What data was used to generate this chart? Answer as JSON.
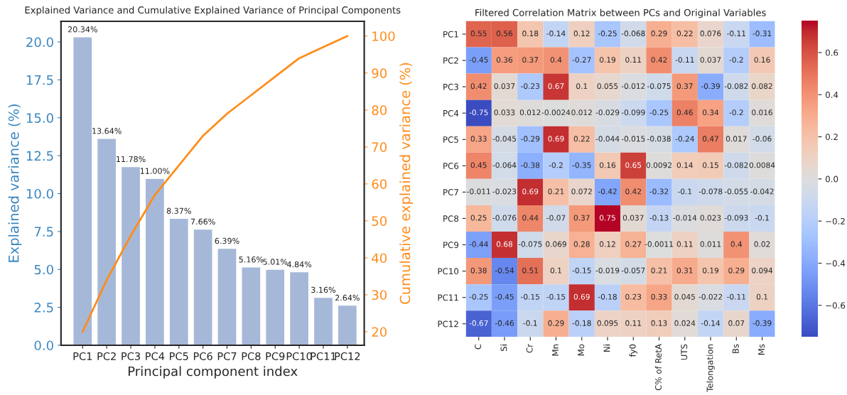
{
  "chart_data": [
    {
      "type": "bar",
      "title": "Explained Variance and Cumulative Explained Variance of Principal Components",
      "xlabel": "Principal component index",
      "ylabel": "Explained variance (%)",
      "y2label": "Cumulative explained variance (%)",
      "categories": [
        "PC1",
        "PC2",
        "PC3",
        "PC4",
        "PC5",
        "PC6",
        "PC7",
        "PC8",
        "PC9",
        "PC10",
        "PC11",
        "PC12"
      ],
      "series": [
        {
          "type": "bar",
          "color": "#a6b8d8",
          "values": [
            20.34,
            13.64,
            11.78,
            11.0,
            8.37,
            7.66,
            6.39,
            5.16,
            5.01,
            4.84,
            3.16,
            2.64
          ],
          "value_labels": [
            "20.34%",
            "13.64%",
            "11.78%",
            "11.00%",
            "8.37%",
            "7.66%",
            "6.39%",
            "5.16%",
            "5.01%",
            "4.84%",
            "3.16%",
            "2.64%"
          ]
        },
        {
          "type": "line",
          "axis": "y2",
          "color": "#ff8c1a",
          "values": [
            20,
            34,
            46,
            57,
            65,
            73,
            79,
            84,
            89,
            94,
            97,
            100
          ]
        }
      ],
      "ylim": [
        0,
        21.36
      ],
      "yticks": [
        {
          "value": 0,
          "label": "0.0"
        },
        2.5,
        {
          "value": 5,
          "label": "5.0"
        },
        7.5,
        {
          "value": 10,
          "label": "10.0"
        },
        12.5,
        {
          "value": 15,
          "label": "15.0"
        },
        17.5,
        {
          "value": 20,
          "label": "20.0"
        }
      ],
      "y2lim": [
        16.36,
        103.98
      ],
      "y2ticks": [
        20,
        30,
        40,
        50,
        60,
        70,
        80,
        90,
        100
      ],
      "grid": false,
      "legend": false
    },
    {
      "type": "heatmap",
      "title": "Filtered Correlation Matrix between PCs and Original Variables",
      "categories": [
        "C",
        "Si",
        "Cr",
        "Mn",
        "Mo",
        "Ni",
        "fy0",
        "C% of RetA",
        "UTS",
        "Telongation",
        "Bs",
        "Ms"
      ],
      "y_categories": [
        "PC1",
        "PC2",
        "PC3",
        "PC4",
        "PC5",
        "PC6",
        "PC7",
        "PC8",
        "PC9",
        "PC10",
        "PC11",
        "PC12"
      ],
      "cells": [
        [
          0.55,
          0.56,
          0.18,
          -0.14,
          0.12,
          -0.25,
          -0.068,
          0.29,
          0.22,
          0.076,
          -0.11,
          -0.31
        ],
        [
          -0.45,
          0.36,
          0.37,
          0.4,
          -0.27,
          0.19,
          0.11,
          0.42,
          -0.11,
          0.037,
          -0.2,
          0.16
        ],
        [
          0.42,
          0.037,
          -0.23,
          0.67,
          0.1,
          0.055,
          -0.012,
          -0.075,
          0.37,
          -0.39,
          -0.082,
          0.082
        ],
        [
          -0.75,
          0.033,
          0.012,
          -0.0024,
          0.012,
          -0.029,
          -0.099,
          -0.25,
          0.46,
          0.34,
          -0.2,
          0.016
        ],
        [
          0.33,
          -0.045,
          -0.29,
          0.69,
          0.22,
          -0.044,
          -0.015,
          -0.038,
          -0.24,
          0.47,
          0.017,
          -0.06
        ],
        [
          0.45,
          -0.064,
          -0.38,
          -0.2,
          -0.35,
          0.16,
          0.65,
          0.0092,
          0.14,
          0.15,
          -0.082,
          0.0084
        ],
        [
          -0.011,
          -0.023,
          0.69,
          0.21,
          0.072,
          -0.42,
          0.42,
          -0.32,
          -0.1,
          -0.078,
          -0.055,
          -0.042
        ],
        [
          0.25,
          -0.076,
          0.44,
          -0.07,
          0.37,
          0.75,
          0.037,
          -0.13,
          -0.014,
          0.023,
          -0.093,
          -0.1
        ],
        [
          -0.44,
          0.68,
          -0.075,
          0.069,
          0.28,
          0.12,
          0.27,
          -0.0011,
          0.11,
          0.011,
          0.4,
          0.02
        ],
        [
          0.38,
          -0.54,
          0.51,
          0.1,
          -0.15,
          -0.019,
          -0.057,
          0.21,
          0.31,
          0.19,
          0.29,
          0.094
        ],
        [
          -0.25,
          -0.45,
          -0.15,
          -0.15,
          0.69,
          -0.18,
          0.23,
          0.33,
          0.045,
          -0.022,
          -0.11,
          0.1
        ],
        [
          -0.67,
          -0.46,
          -0.1,
          0.29,
          -0.18,
          0.095,
          0.11,
          0.13,
          0.024,
          -0.14,
          0.07,
          -0.39
        ]
      ],
      "data_labels": true,
      "clim": [
        -0.75,
        0.75
      ],
      "cticks": [
        {
          "value": -0.6,
          "label": "−0.6"
        },
        {
          "value": -0.4,
          "label": "−0.4"
        },
        {
          "value": -0.2,
          "label": "−0.2"
        },
        {
          "value": 0.0,
          "label": "0.0"
        },
        {
          "value": 0.2,
          "label": "0.2"
        },
        {
          "value": 0.4,
          "label": "0.4"
        },
        {
          "value": 0.6,
          "label": "0.6"
        }
      ]
    }
  ]
}
